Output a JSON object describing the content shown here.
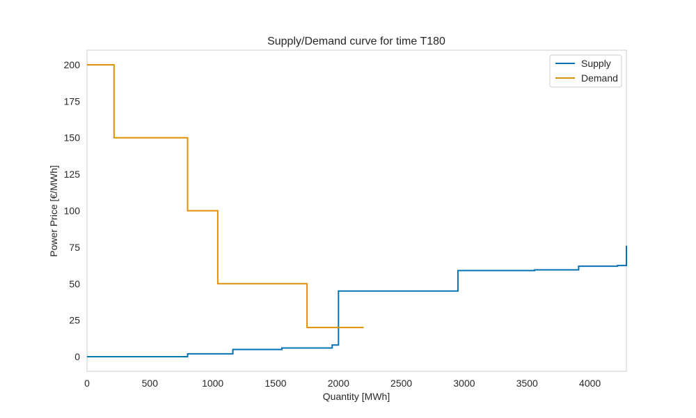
{
  "chart_data": {
    "type": "line",
    "title": "Supply/Demand curve for time T180",
    "xlabel": "Quantity [MWh]",
    "ylabel": "Power Price [€/MWh]",
    "xlim": [
      0,
      4290
    ],
    "ylim": [
      -10,
      210
    ],
    "xticks": [
      0,
      500,
      1000,
      1500,
      2000,
      2500,
      3000,
      3500,
      4000
    ],
    "yticks": [
      0,
      25,
      50,
      75,
      100,
      125,
      150,
      175,
      200
    ],
    "grid": false,
    "legend_position": "top-right",
    "series": [
      {
        "name": "Supply",
        "color": "#0173b2",
        "step": true,
        "points": [
          [
            0,
            0
          ],
          [
            800,
            0
          ],
          [
            800,
            2
          ],
          [
            1160,
            2
          ],
          [
            1160,
            5
          ],
          [
            1550,
            5
          ],
          [
            1550,
            6
          ],
          [
            1950,
            6
          ],
          [
            1950,
            8
          ],
          [
            2000,
            8
          ],
          [
            2000,
            45
          ],
          [
            2950,
            45
          ],
          [
            2950,
            59
          ],
          [
            3560,
            59
          ],
          [
            3560,
            59.5
          ],
          [
            3910,
            59.5
          ],
          [
            3910,
            62
          ],
          [
            4220,
            62
          ],
          [
            4220,
            62.5
          ],
          [
            4290,
            62.5
          ],
          [
            4290,
            76
          ]
        ]
      },
      {
        "name": "Demand",
        "color": "#de8f05",
        "step": true,
        "points": [
          [
            0,
            200
          ],
          [
            215,
            200
          ],
          [
            215,
            150
          ],
          [
            800,
            150
          ],
          [
            800,
            100
          ],
          [
            1040,
            100
          ],
          [
            1040,
            50
          ],
          [
            1750,
            50
          ],
          [
            1750,
            20
          ],
          [
            2200,
            20
          ]
        ]
      }
    ]
  }
}
